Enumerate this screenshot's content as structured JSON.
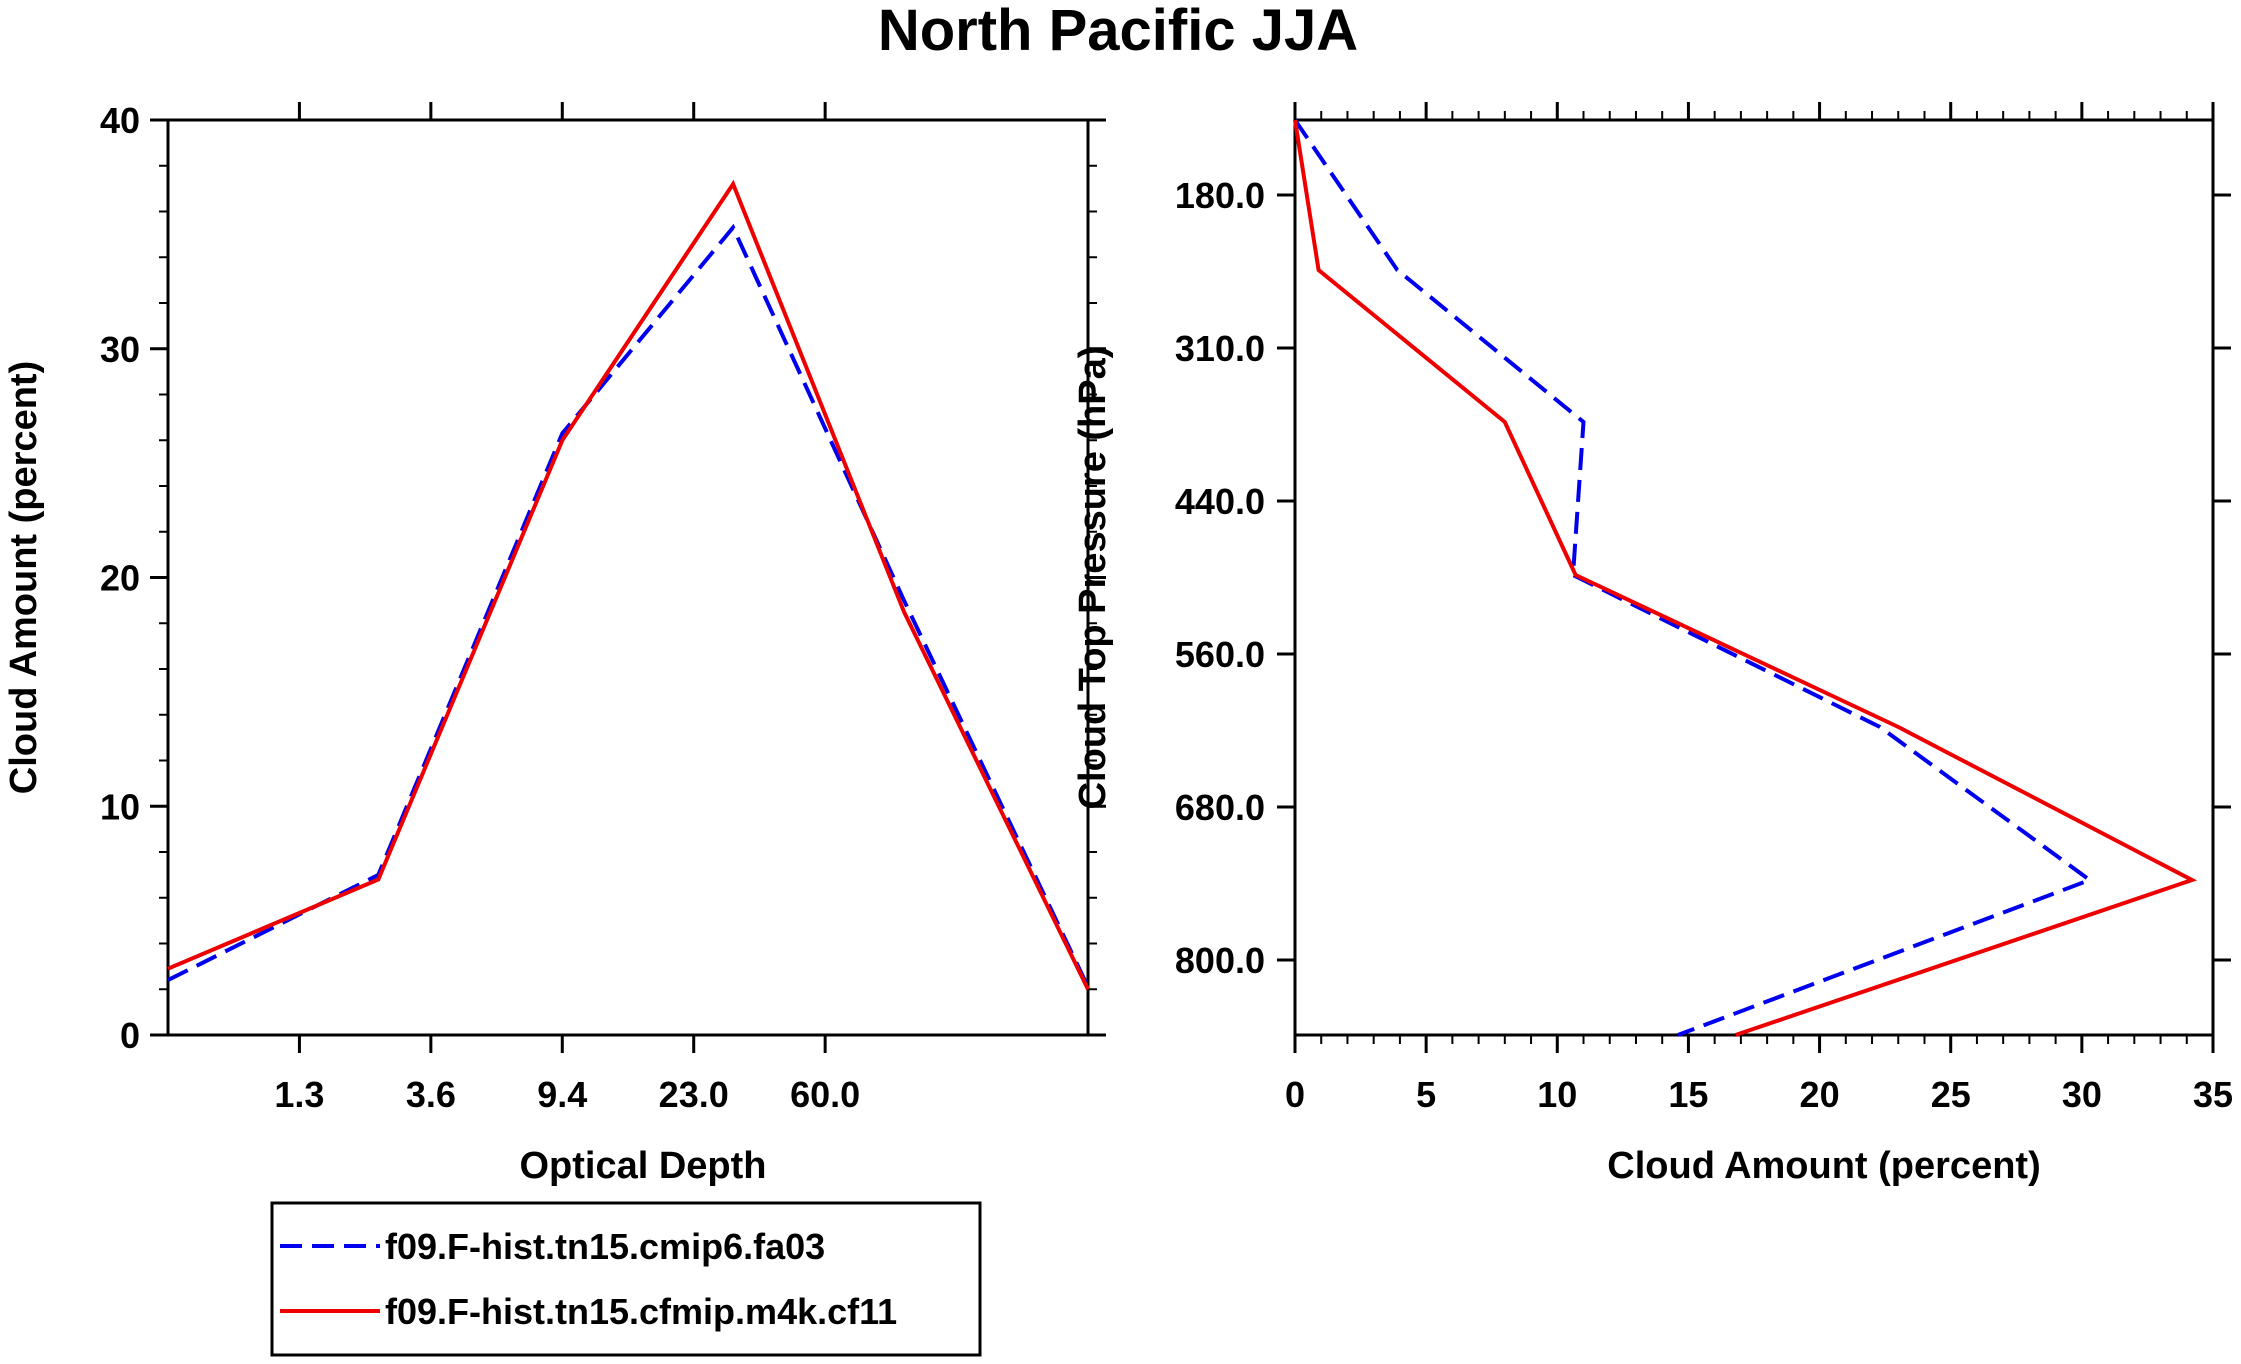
{
  "title": "North Pacific JJA",
  "legend": {
    "entries": [
      {
        "label": "f09.F-hist.tn15.cmip6.fa03",
        "color": "#0000ee",
        "style": "dashed"
      },
      {
        "label": "f09.F-hist.tn15.cfmip.m4k.cf11",
        "color": "#ee0000",
        "style": "solid"
      }
    ]
  },
  "chart_data": [
    {
      "type": "line",
      "xlabel": "Optical Depth",
      "ylabel": "Cloud Amount (percent)",
      "ylim": [
        0,
        40
      ],
      "yticks": [
        "0",
        "10",
        "20",
        "30",
        "40"
      ],
      "xbins": 7,
      "xtick_labels": [
        "1.3",
        "3.6",
        "9.4",
        "23.0",
        "60.0"
      ],
      "series": [
        {
          "name": "f09.F-hist.tn15.cmip6.fa03",
          "color": "#0000ee",
          "dashed": true,
          "values": [
            2.4,
            7.0,
            26.3,
            35.3,
            19.0,
            2.1
          ]
        },
        {
          "name": "f09.F-hist.tn15.cfmip.m4k.cf11",
          "color": "#ee0000",
          "dashed": false,
          "values": [
            2.9,
            6.8,
            26.0,
            37.2,
            18.5,
            2.0
          ]
        }
      ]
    },
    {
      "type": "line",
      "orientation": "vertical-profile",
      "xlabel": "Cloud Amount (percent)",
      "ylabel": "Cloud Top Pressure (hPa)",
      "xlim": [
        0,
        35
      ],
      "xticks": [
        "0",
        "5",
        "10",
        "15",
        "20",
        "25",
        "30",
        "35"
      ],
      "ylevels": 7,
      "ytick_labels": [
        "180.0",
        "310.0",
        "440.0",
        "560.0",
        "680.0",
        "800.0"
      ],
      "series": [
        {
          "name": "f09.F-hist.tn15.cmip6.fa03",
          "color": "#0000ee",
          "dashed": true,
          "values": [
            0,
            3.9,
            11.0,
            10.6,
            22.3,
            30.3,
            14.6
          ]
        },
        {
          "name": "f09.F-hist.tn15.cfmip.m4k.cf11",
          "color": "#ee0000",
          "dashed": false,
          "values": [
            0,
            0.9,
            8.0,
            10.7,
            23.0,
            34.2,
            16.8
          ]
        }
      ]
    }
  ]
}
